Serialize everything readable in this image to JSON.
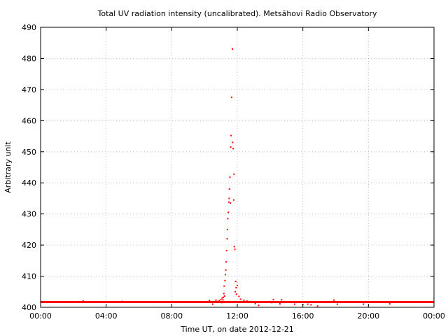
{
  "chart_data": {
    "type": "scatter",
    "title": "Total UV radiation intensity (uncalibrated). Metsähovi Radio Observatory",
    "xlabel": "Time UT, on date 2012-12-21",
    "ylabel": "Arbitrary unit",
    "x_unit": "hours UT",
    "xlim": [
      0,
      24
    ],
    "ylim": [
      400,
      490
    ],
    "grid": true,
    "x_ticks": [
      {
        "value": 0,
        "label": "00:00"
      },
      {
        "value": 4,
        "label": "04:00"
      },
      {
        "value": 8,
        "label": "08:00"
      },
      {
        "value": 12,
        "label": "12:00"
      },
      {
        "value": 16,
        "label": "16:00"
      },
      {
        "value": 20,
        "label": "20:00"
      },
      {
        "value": 24,
        "label": "00:00"
      }
    ],
    "y_ticks": [
      {
        "value": 400,
        "label": "400"
      },
      {
        "value": 410,
        "label": "410"
      },
      {
        "value": 420,
        "label": "420"
      },
      {
        "value": 430,
        "label": "430"
      },
      {
        "value": 440,
        "label": "440"
      },
      {
        "value": 450,
        "label": "450"
      },
      {
        "value": 460,
        "label": "460"
      },
      {
        "value": 470,
        "label": "470"
      },
      {
        "value": 480,
        "label": "480"
      },
      {
        "value": 490,
        "label": "490"
      }
    ],
    "series": [
      {
        "color": "#ff0000",
        "marker": "dot",
        "baseline_value": 401.7,
        "baseline_range": [
          0,
          24
        ],
        "points": [
          [
            2.6,
            402.0
          ],
          [
            5.0,
            401.9
          ],
          [
            10.3,
            402.2
          ],
          [
            10.5,
            401.0
          ],
          [
            10.7,
            402.3
          ],
          [
            10.9,
            402.1
          ],
          [
            11.0,
            402.5
          ],
          [
            11.05,
            401.5
          ],
          [
            11.08,
            403.0
          ],
          [
            11.12,
            402.4
          ],
          [
            11.15,
            403.2
          ],
          [
            11.18,
            404.4
          ],
          [
            11.2,
            406.8
          ],
          [
            11.22,
            403.6
          ],
          [
            11.25,
            408.6
          ],
          [
            11.27,
            410.5
          ],
          [
            11.3,
            412.0
          ],
          [
            11.32,
            414.6
          ],
          [
            11.35,
            418.2
          ],
          [
            11.38,
            422.0
          ],
          [
            11.4,
            425.0
          ],
          [
            11.42,
            428.5
          ],
          [
            11.45,
            430.5
          ],
          [
            11.48,
            433.8
          ],
          [
            11.5,
            435.0
          ],
          [
            11.52,
            438.0
          ],
          [
            11.55,
            441.8
          ],
          [
            11.58,
            433.5
          ],
          [
            11.6,
            451.5
          ],
          [
            11.62,
            455.2
          ],
          [
            11.65,
            467.5
          ],
          [
            11.7,
            483.0
          ],
          [
            11.72,
            453.0
          ],
          [
            11.75,
            451.0
          ],
          [
            11.78,
            434.5
          ],
          [
            11.8,
            442.8
          ],
          [
            11.82,
            419.5
          ],
          [
            11.85,
            418.6
          ],
          [
            11.88,
            405.0
          ],
          [
            11.9,
            408.3
          ],
          [
            11.93,
            406.3
          ],
          [
            11.95,
            404.2
          ],
          [
            12.0,
            407.0
          ],
          [
            12.1,
            403.5
          ],
          [
            12.2,
            402.6
          ],
          [
            12.4,
            402.2
          ],
          [
            12.6,
            402.0
          ],
          [
            13.1,
            401.2
          ],
          [
            13.3,
            400.6
          ],
          [
            14.1,
            401.5
          ],
          [
            14.2,
            402.5
          ],
          [
            14.6,
            401.1
          ],
          [
            14.7,
            402.4
          ],
          [
            15.5,
            401.0
          ],
          [
            16.0,
            400.9
          ],
          [
            16.3,
            401.0
          ],
          [
            16.5,
            400.8
          ],
          [
            16.9,
            400.4
          ],
          [
            17.9,
            402.3
          ],
          [
            18.1,
            401.0
          ],
          [
            19.7,
            401.0
          ],
          [
            21.3,
            401.1
          ]
        ]
      }
    ]
  }
}
